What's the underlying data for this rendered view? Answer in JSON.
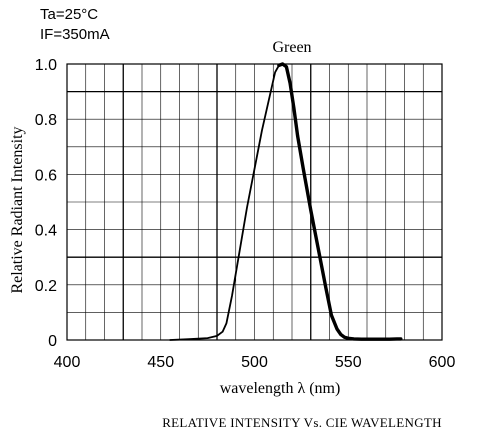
{
  "conditions": {
    "temperature": "Ta=25°C",
    "current": "IF=350mA"
  },
  "caption": "RELATIVE INTENSITY Vs. CIE WAVELENGTH",
  "colors": {
    "line": "#000000",
    "grid": "#000000",
    "background": "#ffffff"
  },
  "chart_data": {
    "type": "line",
    "title": "",
    "xlabel": "wavelength λ (nm)",
    "ylabel": "Relative Radiant Intensity",
    "xlim": [
      400,
      600
    ],
    "ylim": [
      0,
      1.0
    ],
    "x_ticks": [
      400,
      450,
      500,
      550,
      600
    ],
    "x_tick_labels": [
      "400",
      "450",
      "500",
      "550",
      "600"
    ],
    "y_ticks": [
      0,
      0.2,
      0.4,
      0.6,
      0.8,
      1.0
    ],
    "y_tick_labels": [
      "0",
      "0.2",
      "0.4",
      "0.6",
      "0.8",
      "1.0"
    ],
    "grid": true,
    "legend": "none",
    "series": [
      {
        "name": "Green",
        "x": [
          455,
          465,
          475,
          480,
          483,
          485,
          488,
          492,
          496,
          500,
          504,
          508,
          511,
          513,
          515,
          517,
          519,
          521,
          523,
          526,
          530,
          534,
          538,
          541,
          544,
          546,
          548,
          550,
          553,
          557,
          562,
          568,
          572,
          576,
          578
        ],
        "y": [
          0.0,
          0.003,
          0.007,
          0.015,
          0.03,
          0.06,
          0.16,
          0.32,
          0.48,
          0.62,
          0.76,
          0.88,
          0.97,
          0.995,
          1.0,
          0.99,
          0.93,
          0.84,
          0.74,
          0.62,
          0.47,
          0.33,
          0.19,
          0.09,
          0.04,
          0.02,
          0.01,
          0.006,
          0.004,
          0.003,
          0.003,
          0.003,
          0.003,
          0.004,
          0.004
        ]
      }
    ]
  }
}
